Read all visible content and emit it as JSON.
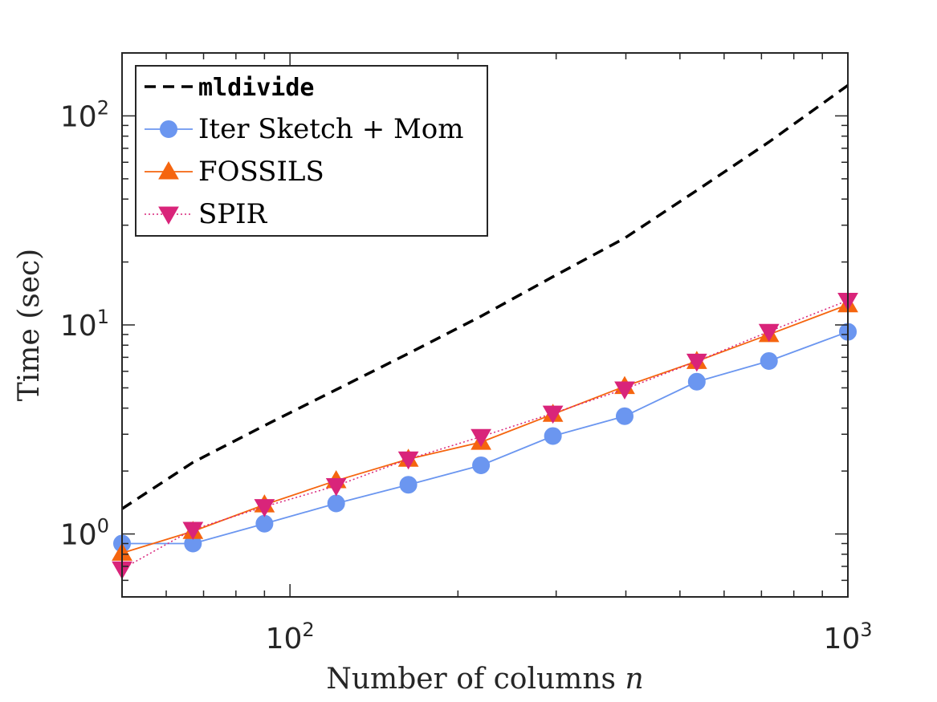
{
  "chart_data": {
    "type": "line",
    "title": "",
    "xlabel": "Number of columns",
    "xlabel_var": "n",
    "ylabel": "Time (sec)",
    "xscale": "log",
    "yscale": "log",
    "xlim": [
      50,
      1000
    ],
    "ylim": [
      0.5,
      200
    ],
    "grid": false,
    "legend_position": "top-left",
    "x_ticks": [
      {
        "base": "10",
        "exp": "2",
        "value": 100
      },
      {
        "base": "10",
        "exp": "3",
        "value": 1000
      }
    ],
    "y_ticks": [
      {
        "base": "10",
        "exp": "0",
        "value": 1
      },
      {
        "base": "10",
        "exp": "1",
        "value": 10
      },
      {
        "base": "10",
        "exp": "2",
        "value": 100
      }
    ],
    "x": [
      50,
      67,
      90,
      121,
      163,
      220,
      296,
      398,
      536,
      722,
      1000
    ],
    "series": [
      {
        "name": "mldivide",
        "color": "#000000",
        "linestyle": "dashed",
        "marker": "none",
        "values": [
          1.32,
          2.2,
          3.3,
          4.9,
          7.3,
          11.0,
          17.0,
          26.0,
          44.0,
          75.0,
          140.0
        ]
      },
      {
        "name": "Iter Sketch + Mom",
        "color": "#6b96f0",
        "linestyle": "solid",
        "marker": "circle",
        "values": [
          0.9,
          0.9,
          1.12,
          1.4,
          1.72,
          2.13,
          2.94,
          3.66,
          5.35,
          6.72,
          9.27
        ]
      },
      {
        "name": "FOSSILS",
        "color": "#f5650f",
        "linestyle": "solid",
        "marker": "triangle-up",
        "values": [
          0.81,
          1.03,
          1.38,
          1.8,
          2.28,
          2.75,
          3.74,
          5.08,
          6.7,
          9.0,
          12.5
        ]
      },
      {
        "name": "SPIR",
        "color": "#d9247a",
        "linestyle": "dotted",
        "marker": "triangle-down",
        "values": [
          0.68,
          1.05,
          1.35,
          1.7,
          2.28,
          2.92,
          3.78,
          4.93,
          6.7,
          9.3,
          13.1
        ]
      }
    ]
  }
}
